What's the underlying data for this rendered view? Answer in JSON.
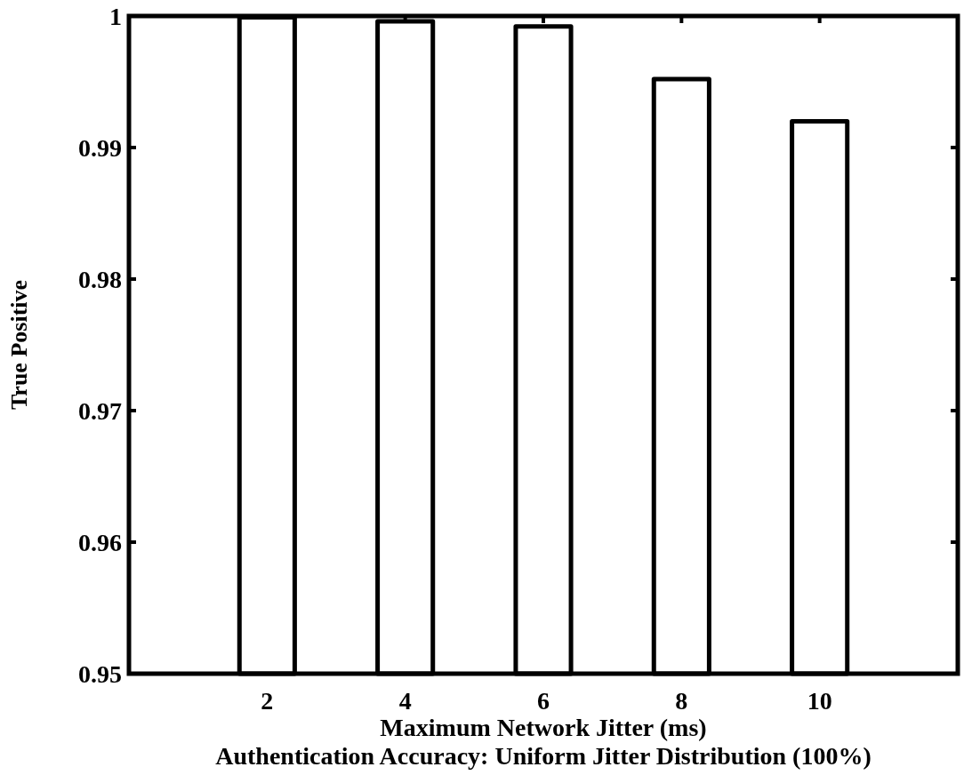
{
  "chart_data": {
    "type": "bar",
    "title": "Authentication Accuracy: Uniform Jitter Distribution (100%)",
    "xlabel": "Maximum Network Jitter (ms)",
    "ylabel": "True Positive",
    "x": [
      2,
      4,
      6,
      8,
      10
    ],
    "values": [
      0.9999,
      0.9996,
      0.9992,
      0.9952,
      0.992
    ],
    "color": "#ffffff",
    "xlim": [
      0,
      12
    ],
    "xticks": [
      2,
      4,
      6,
      8,
      10
    ],
    "ylim": [
      0.95,
      1
    ],
    "yticks": [
      0.95,
      0.96,
      0.97,
      0.98,
      0.99,
      {
        "value": 1,
        "label": "1"
      }
    ],
    "grid": false
  }
}
